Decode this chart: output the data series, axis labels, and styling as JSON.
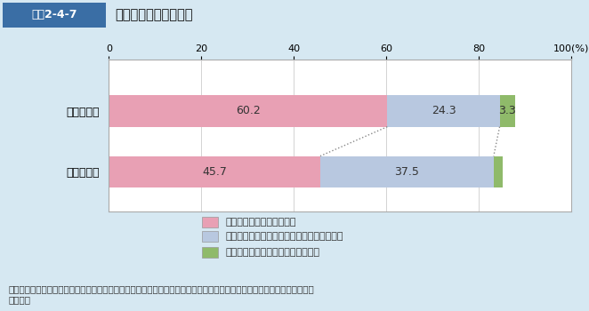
{
  "title_box": "図表2-4-7",
  "title_text": "望ましい最期の迎え方",
  "categories": [
    "自分の場合",
    "家族の場合"
  ],
  "series": [
    {
      "label": "ある日突然苦しまずに死ぬ",
      "values": [
        60.2,
        45.7
      ],
      "color": "#e8a0b4"
    },
    {
      "label": "多少苦しんででも少しずつ死に向かっていく",
      "values": [
        24.3,
        37.5
      ],
      "color": "#b8c8e0"
    },
    {
      "label": "痴呆で自分で分からないうちに死ぬ",
      "values": [
        3.3,
        1.9
      ],
      "color": "#8fba6a"
    }
  ],
  "xlim": [
    0,
    100
  ],
  "xticks": [
    0,
    20,
    40,
    60,
    80,
    100
  ],
  "background_color": "#d6e8f2",
  "plot_background": "#ffffff",
  "header_color": "#3a6ea5",
  "header_text_color": "#ffffff",
  "border_color": "#aaaaaa",
  "grid_color": "#cccccc",
  "font_size": 9,
  "bar_label_fontsize": 9,
  "source_text": "資料：安心と信頼のある「ライフエンディング・ステージ」の創出に向けた普及啓発に関する研究会（経済産業省）報告書\n　　より"
}
